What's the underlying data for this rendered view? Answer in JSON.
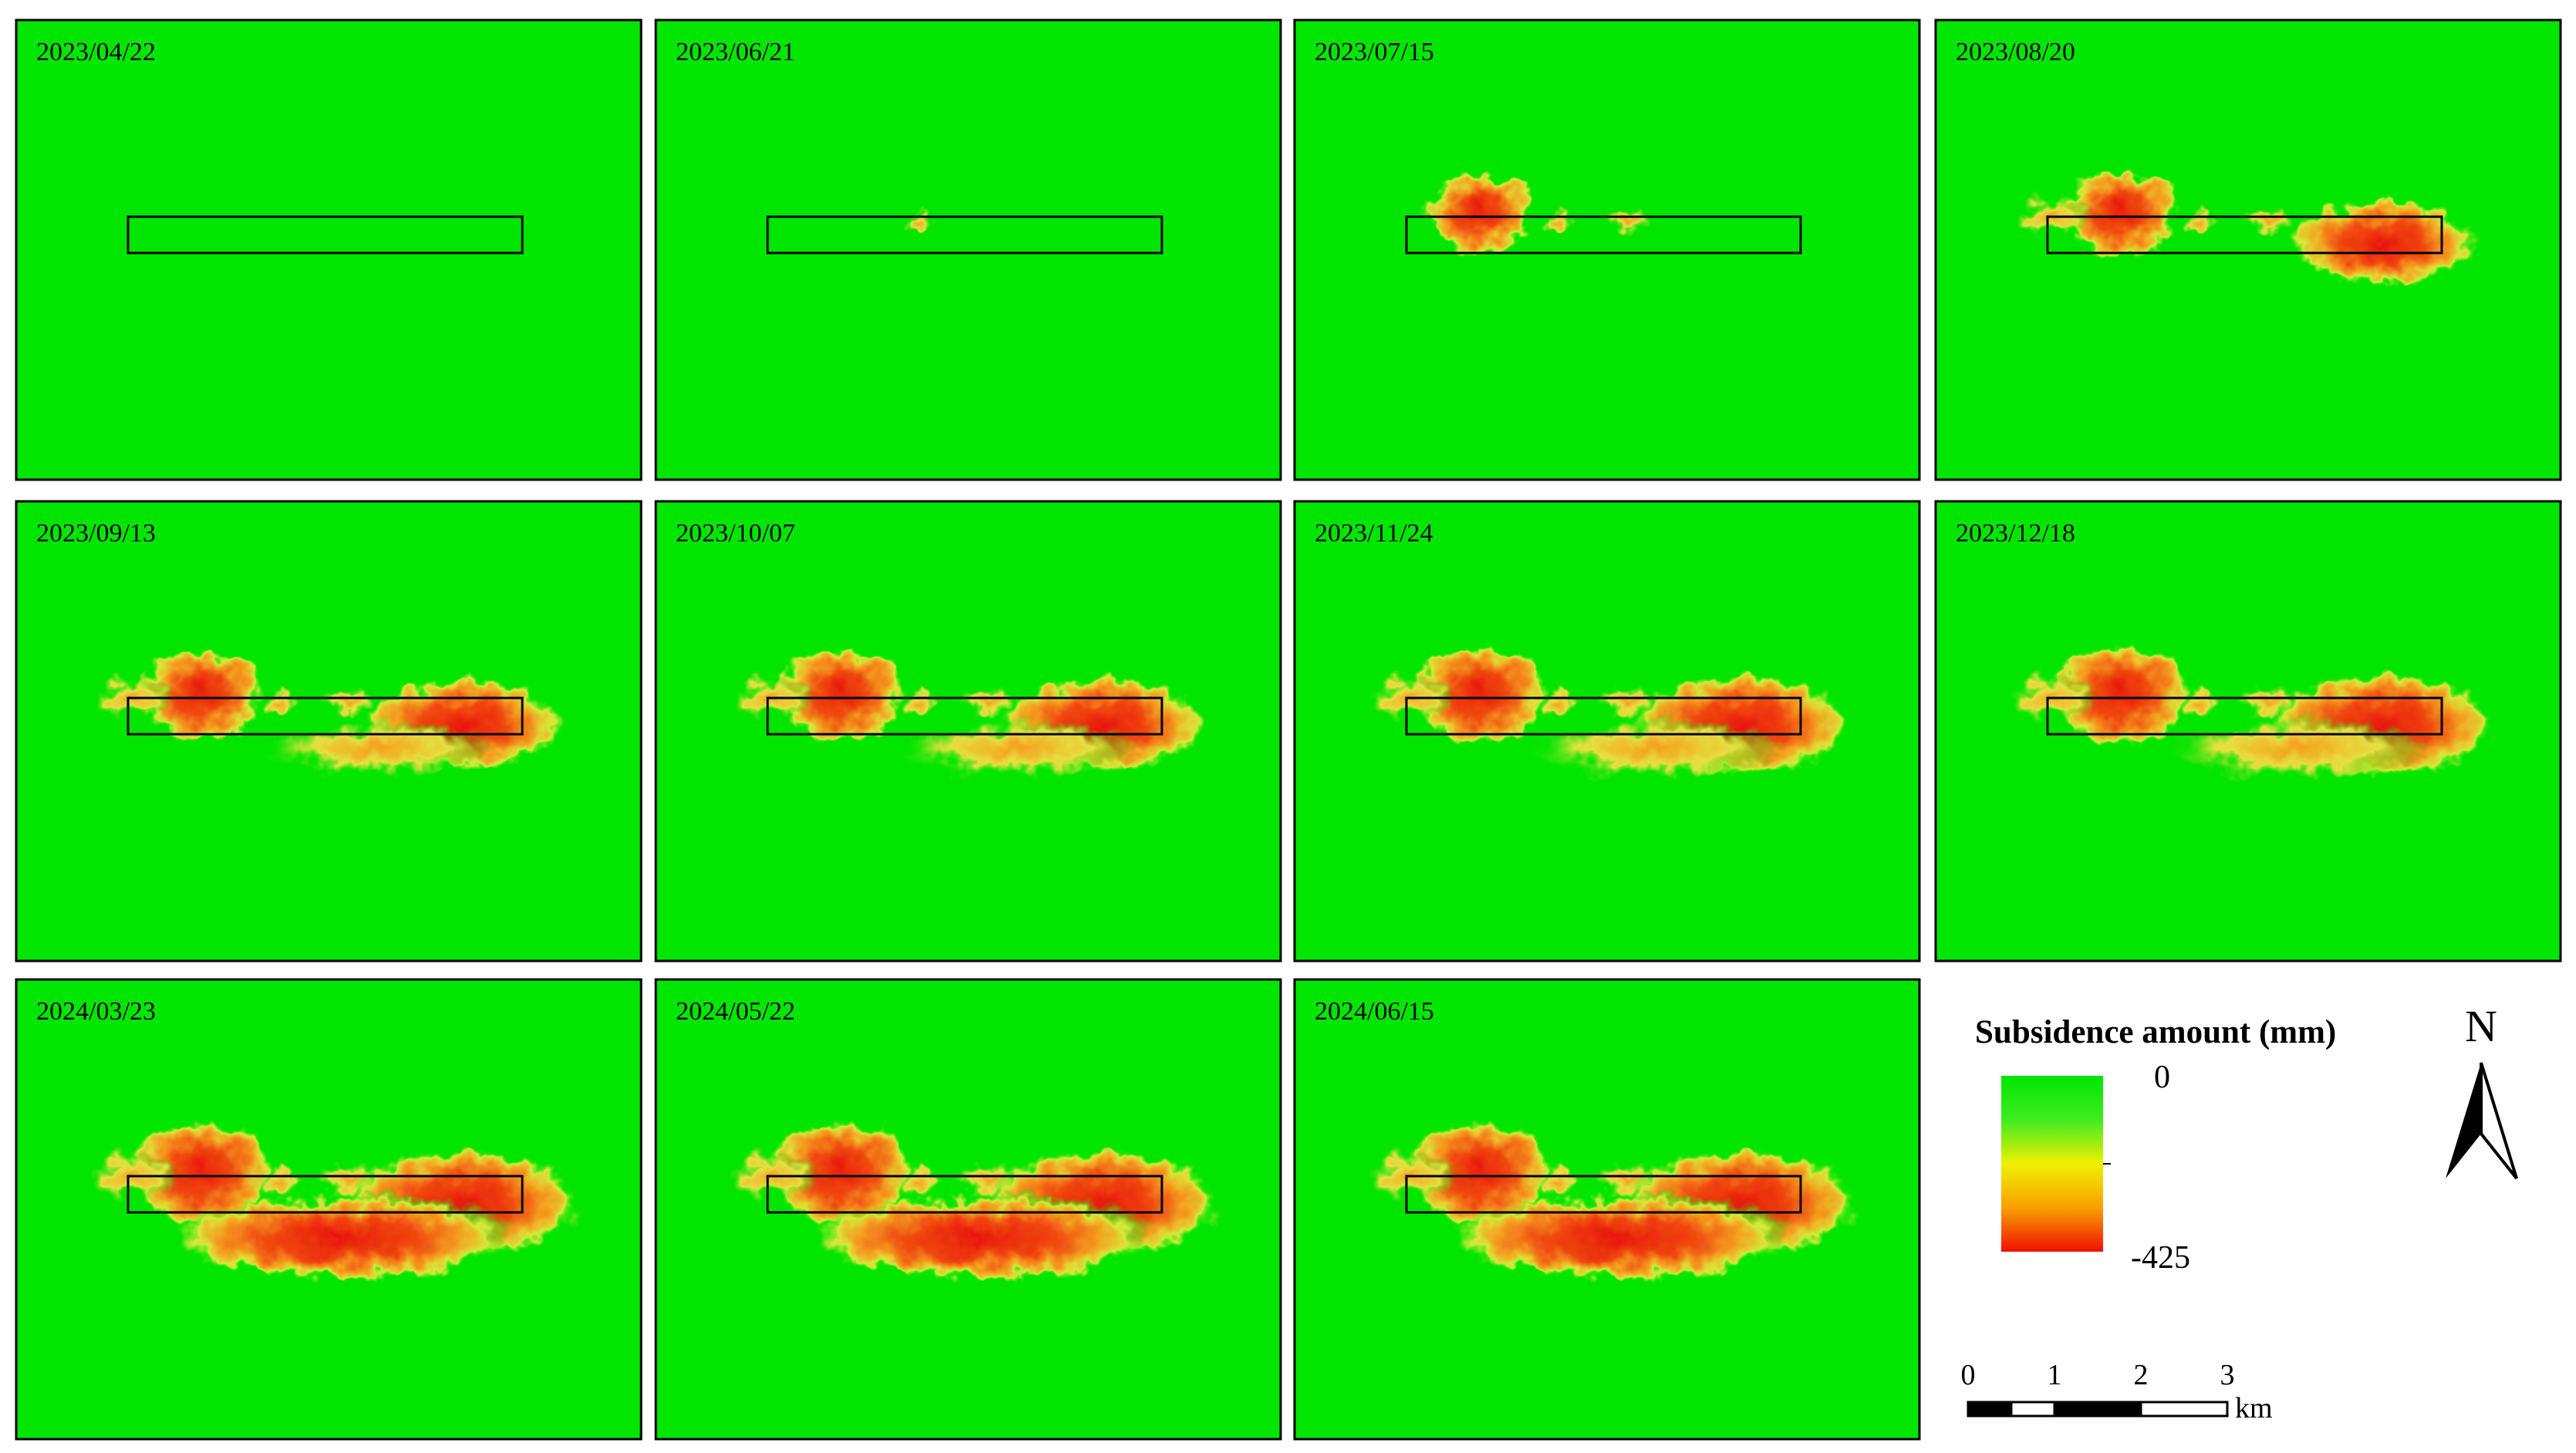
{
  "panels": [
    {
      "date": "2023/04/22"
    },
    {
      "date": "2023/06/21"
    },
    {
      "date": "2023/07/15"
    },
    {
      "date": "2023/08/20"
    },
    {
      "date": "2023/09/13"
    },
    {
      "date": "2023/10/07"
    },
    {
      "date": "2023/11/24"
    },
    {
      "date": "2023/12/18"
    },
    {
      "date": "2024/03/23"
    },
    {
      "date": "2024/05/22"
    },
    {
      "date": "2024/06/15"
    }
  ],
  "legend": {
    "title": "Subsidence amount (mm)",
    "max": 0,
    "min": -425
  },
  "north": "N",
  "scale_bar": {
    "ticks": [
      0,
      1,
      2,
      3
    ],
    "unit": "km"
  }
}
